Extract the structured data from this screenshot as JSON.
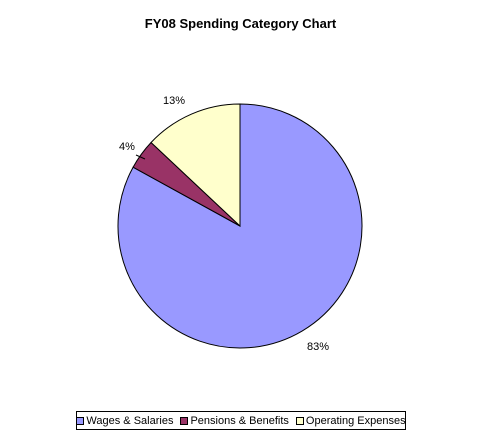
{
  "chart_data": {
    "type": "pie",
    "title": "FY08 Spending Category Chart",
    "slices": [
      {
        "name": "Wages & Salaries",
        "value": 83,
        "label": "83%",
        "color": "#9999ff"
      },
      {
        "name": "Pensions & Benefits",
        "value": 4,
        "label": "4%",
        "color": "#993366"
      },
      {
        "name": "Operating Expenses",
        "value": 13,
        "label": "13%",
        "color": "#ffffcc"
      }
    ],
    "start_angle": "12 o'clock, clockwise",
    "legend_position": "bottom"
  }
}
